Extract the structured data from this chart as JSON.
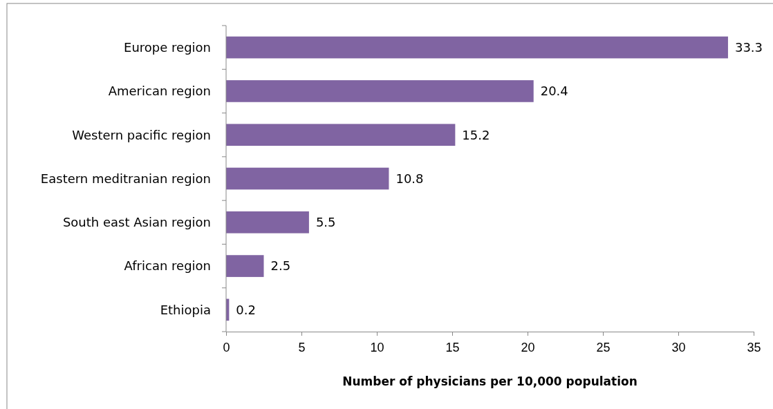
{
  "chart_data": {
    "type": "bar",
    "orientation": "horizontal",
    "xlabel": "Number of physicians per 10,000 population",
    "categories": [
      "Europe region",
      "American region",
      "Western pacific region",
      "Eastern meditranian region",
      "South east Asian region",
      "African region",
      "Ethiopia"
    ],
    "values": [
      33.3,
      20.4,
      15.2,
      10.8,
      5.5,
      2.5,
      0.2
    ],
    "color": "#8064a2",
    "xlim": [
      0,
      35
    ],
    "xticks": [
      0,
      5,
      10,
      15,
      20,
      25,
      30,
      35
    ],
    "data_labels": true
  }
}
